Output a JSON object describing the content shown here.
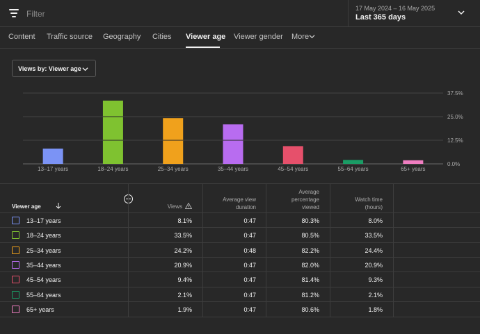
{
  "filter": {
    "placeholder": "Filter"
  },
  "date": {
    "range": "17 May 2024 – 16 May 2025",
    "label": "Last 365 days"
  },
  "tabs": [
    {
      "label": "Content"
    },
    {
      "label": "Traffic source"
    },
    {
      "label": "Geography"
    },
    {
      "label": "Cities"
    },
    {
      "label": "Viewer age",
      "active": true
    },
    {
      "label": "Viewer gender"
    },
    {
      "label": "More"
    }
  ],
  "views_by": {
    "label": "Views by: Viewer age"
  },
  "chart_data": {
    "type": "bar",
    "categories": [
      "13–17 years",
      "18–24 years",
      "25–34 years",
      "35–44 years",
      "45–54 years",
      "55–64 years",
      "65+ years"
    ],
    "values": [
      8.1,
      33.5,
      24.2,
      20.9,
      9.4,
      2.1,
      1.9
    ],
    "colors": [
      "#7b93f5",
      "#7fc230",
      "#f0a11c",
      "#b86cf0",
      "#e6506b",
      "#1a9c65",
      "#f07ec1"
    ],
    "yticks": [
      "37.5%",
      "25.0%",
      "12.5%",
      "0.0%"
    ],
    "ylim": [
      0,
      37.5
    ],
    "ylabel": "",
    "xlabel": ""
  },
  "table": {
    "headers": {
      "viewer_age": "Viewer age",
      "views": "Views",
      "avg_view_duration_1": "Average view",
      "avg_view_duration_2": "duration",
      "avg_pct_1": "Average",
      "avg_pct_2": "percentage",
      "avg_pct_3": "viewed",
      "watch_time_1": "Watch time",
      "watch_time_2": "(hours)"
    },
    "rows": [
      {
        "age": "13–17 years",
        "views": "8.1%",
        "duration": "0:47",
        "pct": "80.3%",
        "watch": "8.0%",
        "color": "#7b93f5"
      },
      {
        "age": "18–24 years",
        "views": "33.5%",
        "duration": "0:47",
        "pct": "80.5%",
        "watch": "33.5%",
        "color": "#7fc230"
      },
      {
        "age": "25–34 years",
        "views": "24.2%",
        "duration": "0:48",
        "pct": "82.2%",
        "watch": "24.4%",
        "color": "#f0a11c"
      },
      {
        "age": "35–44 years",
        "views": "20.9%",
        "duration": "0:47",
        "pct": "82.0%",
        "watch": "20.9%",
        "color": "#b86cf0"
      },
      {
        "age": "45–54 years",
        "views": "9.4%",
        "duration": "0:47",
        "pct": "81.4%",
        "watch": "9.3%",
        "color": "#e6506b"
      },
      {
        "age": "55–64 years",
        "views": "2.1%",
        "duration": "0:47",
        "pct": "81.2%",
        "watch": "2.1%",
        "color": "#1a9c65"
      },
      {
        "age": "65+ years",
        "views": "1.9%",
        "duration": "0:47",
        "pct": "80.6%",
        "watch": "1.8%",
        "color": "#f07ec1"
      }
    ]
  }
}
